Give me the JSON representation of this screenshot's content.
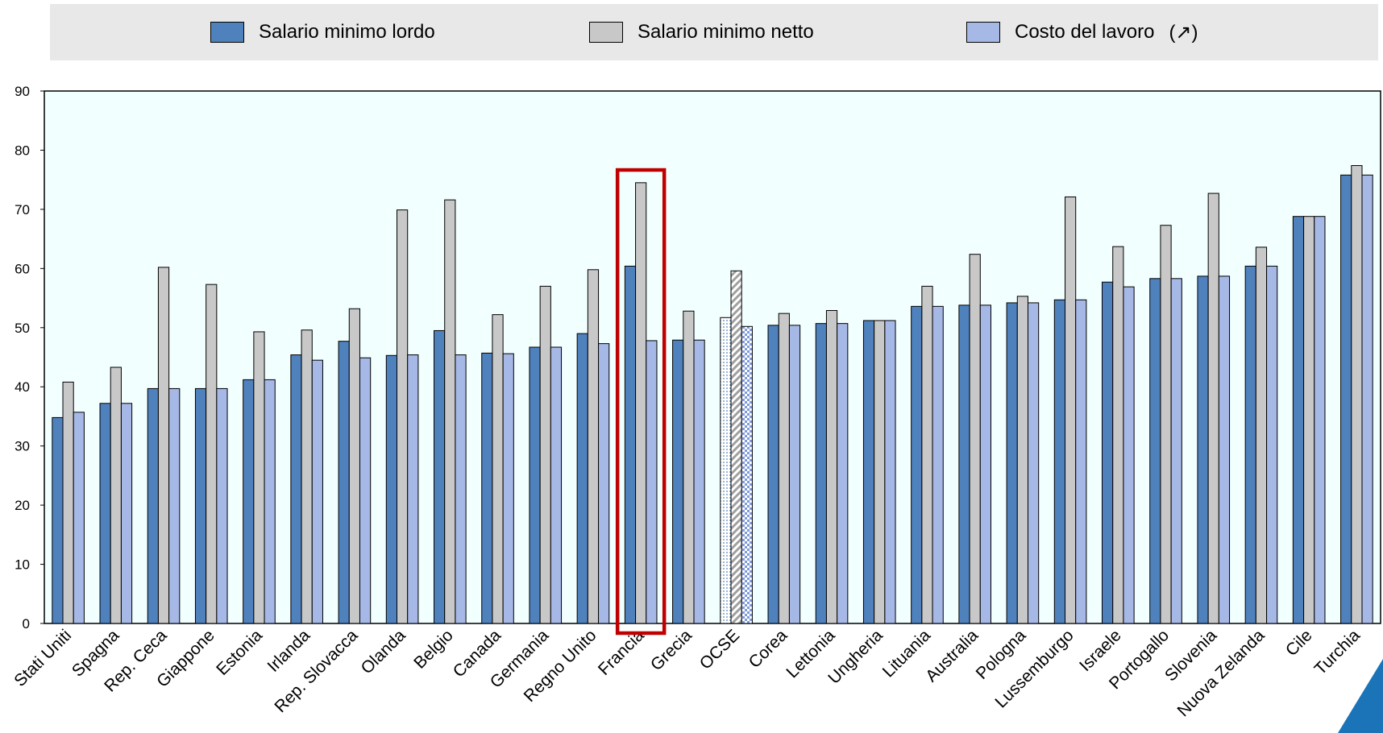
{
  "chart_data": {
    "type": "bar",
    "legend": [
      {
        "name": "Salario minimo lordo",
        "color": "#4f81bd"
      },
      {
        "name": "Salario minimo netto",
        "color": "#c8c8c8"
      },
      {
        "name": "Costo del lavoro",
        "color": "#a6b8e5",
        "suffix": "(↗)"
      }
    ],
    "legend_placement": "top",
    "ylim": [
      0,
      90
    ],
    "yticks": [
      0,
      10,
      20,
      30,
      40,
      50,
      60,
      70,
      80,
      90
    ],
    "grid": false,
    "categories": [
      "Stati Uniti",
      "Spagna",
      "Rep. Ceca",
      "Giappone",
      "Estonia",
      "Irlanda",
      "Rep. Slovacca",
      "Olanda",
      "Belgio",
      "Canada",
      "Germania",
      "Regno Unito",
      "Francia",
      "Grecia",
      "OCSE",
      "Corea",
      "Lettonia",
      "Ungheria",
      "Lituania",
      "Australia",
      "Pologna",
      "Lussemburgo",
      "Israele",
      "Portogallo",
      "Slovenia",
      "Nuova Zelanda",
      "Cile",
      "Turchia"
    ],
    "series": [
      {
        "name": "Salario minimo lordo",
        "values": [
          34.8,
          37.2,
          39.7,
          39.7,
          41.2,
          45.4,
          47.7,
          45.3,
          49.5,
          45.7,
          46.7,
          49.0,
          60.4,
          47.9,
          51.7,
          50.4,
          50.7,
          51.2,
          53.6,
          53.8,
          54.2,
          54.7,
          57.7,
          58.3,
          58.7,
          60.4,
          68.8,
          75.8
        ]
      },
      {
        "name": "Salario minimo netto",
        "values": [
          40.8,
          43.3,
          60.2,
          57.3,
          49.3,
          49.6,
          53.2,
          69.9,
          71.6,
          52.2,
          57.0,
          59.8,
          74.5,
          52.8,
          59.6,
          52.4,
          52.9,
          51.2,
          57.0,
          62.4,
          55.3,
          72.1,
          63.7,
          67.3,
          72.7,
          63.6,
          68.8,
          77.4
        ]
      },
      {
        "name": "Costo del lavoro",
        "values": [
          35.7,
          37.2,
          39.7,
          39.7,
          41.2,
          44.5,
          44.9,
          45.4,
          45.4,
          45.6,
          46.7,
          47.3,
          47.8,
          47.9,
          50.2,
          50.4,
          50.7,
          51.2,
          53.6,
          53.8,
          54.2,
          54.7,
          56.9,
          58.3,
          58.7,
          60.4,
          68.8,
          75.8
        ]
      }
    ],
    "highlight": "Francia",
    "highlight_color": "#c00000",
    "oecd_category": "OCSE",
    "plot_background": "#f2ffff"
  }
}
